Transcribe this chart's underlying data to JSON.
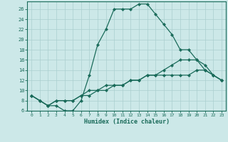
{
  "xlabel": "Humidex (Indice chaleur)",
  "bg_color": "#cce8e8",
  "line_color": "#1a6b5a",
  "grid_color": "#aacfcf",
  "xlim": [
    -0.5,
    23.5
  ],
  "ylim": [
    6,
    27.5
  ],
  "xticks": [
    0,
    1,
    2,
    3,
    4,
    5,
    6,
    7,
    8,
    9,
    10,
    11,
    12,
    13,
    14,
    15,
    16,
    17,
    18,
    19,
    20,
    21,
    22,
    23
  ],
  "yticks": [
    6,
    8,
    10,
    12,
    14,
    16,
    18,
    20,
    22,
    24,
    26
  ],
  "series": [
    [
      9,
      8,
      7,
      7,
      6,
      6,
      8,
      13,
      19,
      22,
      26,
      26,
      26,
      27,
      27,
      25,
      23,
      21,
      18,
      18,
      16,
      14,
      13,
      12
    ],
    [
      9,
      8,
      7,
      8,
      8,
      8,
      9,
      10,
      10,
      11,
      11,
      11,
      12,
      12,
      13,
      13,
      13,
      13,
      13,
      13,
      14,
      14,
      13,
      12
    ],
    [
      9,
      8,
      7,
      8,
      8,
      8,
      9,
      9,
      10,
      10,
      11,
      11,
      12,
      12,
      13,
      13,
      14,
      15,
      16,
      16,
      16,
      15,
      13,
      12
    ]
  ],
  "marker": "D",
  "markersize": 2.2,
  "linewidth": 0.9
}
